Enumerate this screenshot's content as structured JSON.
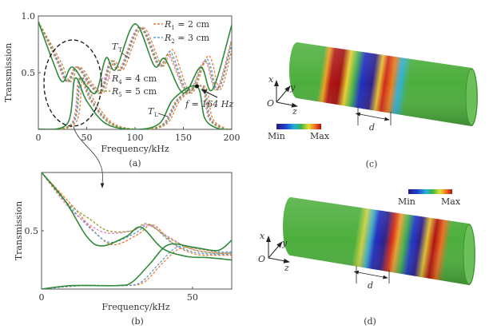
{
  "chart_data": [
    {
      "panel": "(a)",
      "type": "line",
      "xlabel": "Frequency/kHz",
      "ylabel": "Transmission",
      "xlim": [
        0,
        200
      ],
      "ylim": [
        0,
        1.0
      ],
      "xticks": [
        "0",
        "50",
        "100",
        "150",
        "200"
      ],
      "yticks": [
        "0.5",
        "1.0"
      ],
      "grid": false,
      "legend_placement": "top-right and center",
      "annotations": {
        "tt": "T",
        "tt_sub": "T",
        "tl": "T",
        "tl_sub": "L",
        "f": "f = 164 Hz"
      },
      "legend": [
        {
          "sym": "R",
          "sub": "1",
          "text": " = 2 cm",
          "color": "#f07a30"
        },
        {
          "sym": "R",
          "sub": "2",
          "text": " = 3 cm",
          "color": "#5b9bd5"
        },
        {
          "sym": "R",
          "sub": "4",
          "text": " = 4 cm",
          "color": "#e57ec8"
        },
        {
          "sym": "R",
          "sub": "5",
          "text": " = 5 cm",
          "color": "#9c9a2a"
        }
      ],
      "series": [
        {
          "curve": "T_T",
          "group": "R1",
          "color": "#f07a30",
          "dashed": true,
          "points": [
            [
              0,
              0.95
            ],
            [
              23,
              0.6
            ],
            [
              33,
              0.42
            ],
            [
              43,
              0.55
            ],
            [
              58,
              0.38
            ],
            [
              68,
              0.33
            ],
            [
              78,
              0.6
            ],
            [
              88,
              0.53
            ],
            [
              108,
              0.9
            ],
            [
              128,
              0.56
            ],
            [
              139,
              0.7
            ],
            [
              158,
              0.32
            ],
            [
              176,
              0.65
            ],
            [
              188,
              0.35
            ],
            [
              200,
              0.7
            ]
          ]
        },
        {
          "curve": "T_L",
          "group": "R1",
          "color": "#f07a30",
          "dashed": true,
          "points": [
            [
              0,
              0
            ],
            [
              38,
              0.05
            ],
            [
              46,
              0.45
            ],
            [
              58,
              0.25
            ],
            [
              78,
              0.05
            ],
            [
              108,
              0
            ],
            [
              133,
              0.05
            ],
            [
              148,
              0.27
            ],
            [
              172,
              0.38
            ],
            [
              180,
              0.1
            ],
            [
              193,
              0.01
            ],
            [
              200,
              0
            ]
          ]
        },
        {
          "curve": "T_T",
          "group": "R2",
          "color": "#5b9bd5",
          "dashed": true,
          "points": [
            [
              0,
              0.95
            ],
            [
              21,
              0.6
            ],
            [
              31,
              0.42
            ],
            [
              41,
              0.55
            ],
            [
              56,
              0.38
            ],
            [
              66,
              0.33
            ],
            [
              76,
              0.6
            ],
            [
              86,
              0.53
            ],
            [
              106,
              0.9
            ],
            [
              126,
              0.56
            ],
            [
              137,
              0.68
            ],
            [
              156,
              0.32
            ],
            [
              174,
              0.62
            ],
            [
              186,
              0.35
            ],
            [
              200,
              0.75
            ]
          ]
        },
        {
          "curve": "T_L",
          "group": "R2",
          "color": "#5b9bd5",
          "dashed": true,
          "points": [
            [
              0,
              0
            ],
            [
              36,
              0.05
            ],
            [
              44,
              0.45
            ],
            [
              56,
              0.25
            ],
            [
              76,
              0.05
            ],
            [
              106,
              0
            ],
            [
              131,
              0.05
            ],
            [
              146,
              0.27
            ],
            [
              170,
              0.38
            ],
            [
              178,
              0.1
            ],
            [
              191,
              0.01
            ],
            [
              200,
              0
            ]
          ]
        },
        {
          "curve": "T_T",
          "group": "R4",
          "color": "#e57ec8",
          "dashed": true,
          "points": [
            [
              0,
              0.95
            ],
            [
              19,
              0.6
            ],
            [
              29,
              0.42
            ],
            [
              39,
              0.55
            ],
            [
              54,
              0.38
            ],
            [
              64,
              0.33
            ],
            [
              74,
              0.6
            ],
            [
              84,
              0.53
            ],
            [
              104,
              0.9
            ],
            [
              124,
              0.56
            ],
            [
              135,
              0.65
            ],
            [
              154,
              0.32
            ],
            [
              172,
              0.6
            ],
            [
              184,
              0.35
            ],
            [
              200,
              0.8
            ]
          ]
        },
        {
          "curve": "T_L",
          "group": "R4",
          "color": "#e57ec8",
          "dashed": true,
          "points": [
            [
              0,
              0
            ],
            [
              34,
              0.05
            ],
            [
              42,
              0.45
            ],
            [
              54,
              0.25
            ],
            [
              74,
              0.05
            ],
            [
              104,
              0
            ],
            [
              129,
              0.05
            ],
            [
              144,
              0.27
            ],
            [
              168,
              0.38
            ],
            [
              176,
              0.1
            ],
            [
              189,
              0.01
            ],
            [
              200,
              0
            ]
          ]
        },
        {
          "curve": "T_T",
          "group": "R5",
          "color": "#9c9a2a",
          "dashed": true,
          "points": [
            [
              0,
              0.95
            ],
            [
              20,
              0.6
            ],
            [
              30,
              0.42
            ],
            [
              40,
              0.55
            ],
            [
              55,
              0.38
            ],
            [
              65,
              0.33
            ],
            [
              75,
              0.6
            ],
            [
              85,
              0.53
            ],
            [
              105,
              0.9
            ],
            [
              125,
              0.56
            ],
            [
              136,
              0.66
            ],
            [
              155,
              0.32
            ],
            [
              173,
              0.6
            ],
            [
              185,
              0.35
            ],
            [
              200,
              0.78
            ]
          ]
        },
        {
          "curve": "T_L",
          "group": "R5",
          "color": "#9c9a2a",
          "dashed": true,
          "points": [
            [
              0,
              0
            ],
            [
              35,
              0.05
            ],
            [
              43,
              0.45
            ],
            [
              55,
              0.25
            ],
            [
              75,
              0.05
            ],
            [
              105,
              0
            ],
            [
              130,
              0.05
            ],
            [
              145,
              0.27
            ],
            [
              169,
              0.38
            ],
            [
              177,
              0.1
            ],
            [
              190,
              0.01
            ],
            [
              200,
              0
            ]
          ]
        },
        {
          "curve": "T_T",
          "group": "reference",
          "color": "#2e8b3a",
          "dashed": false,
          "points": [
            [
              0,
              0.95
            ],
            [
              15,
              0.6
            ],
            [
              25,
              0.42
            ],
            [
              35,
              0.55
            ],
            [
              50,
              0.38
            ],
            [
              60,
              0.33
            ],
            [
              70,
              0.63
            ],
            [
              80,
              0.53
            ],
            [
              100,
              0.93
            ],
            [
              120,
              0.56
            ],
            [
              131,
              0.62
            ],
            [
              150,
              0.32
            ],
            [
              168,
              0.55
            ],
            [
              180,
              0.35
            ],
            [
              200,
              0.92
            ]
          ]
        },
        {
          "curve": "T_L",
          "group": "reference",
          "color": "#2e8b3a",
          "dashed": false,
          "points": [
            [
              0,
              0
            ],
            [
              30,
              0.05
            ],
            [
              38,
              0.45
            ],
            [
              50,
              0.25
            ],
            [
              70,
              0.05
            ],
            [
              100,
              0
            ],
            [
              125,
              0.05
            ],
            [
              140,
              0.27
            ],
            [
              164,
              0.38
            ],
            [
              172,
              0.1
            ],
            [
              185,
              0.01
            ],
            [
              200,
              0
            ]
          ]
        }
      ],
      "marker": {
        "x": 164,
        "y": 0.38
      }
    },
    {
      "panel": "(b)",
      "type": "line",
      "xlabel": "Frequency/kHz",
      "ylabel": "Transmission",
      "xlim": [
        0,
        63
      ],
      "ylim": [
        0,
        1.0
      ],
      "xticks": [
        "0",
        "50"
      ],
      "yticks": [
        "0.5"
      ],
      "grid": false,
      "series": [
        {
          "curve": "T_T",
          "group": "R1",
          "color": "#f07a30",
          "dashed": true,
          "points": [
            [
              0,
              1
            ],
            [
              10,
              0.72
            ],
            [
              18,
              0.48
            ],
            [
              24,
              0.38
            ],
            [
              32,
              0.47
            ],
            [
              37,
              0.55
            ],
            [
              44,
              0.38
            ],
            [
              51,
              0.3
            ],
            [
              57,
              0.29
            ],
            [
              63,
              0.29
            ]
          ]
        },
        {
          "curve": "T_L",
          "group": "R1",
          "color": "#f07a30",
          "dashed": true,
          "points": [
            [
              0,
              0
            ],
            [
              14,
              0.03
            ],
            [
              28,
              0.03
            ],
            [
              34,
              0.06
            ],
            [
              40,
              0.22
            ],
            [
              46,
              0.35
            ],
            [
              53,
              0.34
            ],
            [
              59,
              0.31
            ],
            [
              63,
              0.3
            ]
          ]
        },
        {
          "curve": "T_T",
          "group": "R2",
          "color": "#5b9bd5",
          "dashed": true,
          "points": [
            [
              0,
              1
            ],
            [
              9,
              0.72
            ],
            [
              17,
              0.5
            ],
            [
              23,
              0.4
            ],
            [
              31,
              0.48
            ],
            [
              36,
              0.55
            ],
            [
              43,
              0.4
            ],
            [
              50,
              0.32
            ],
            [
              57,
              0.3
            ],
            [
              63,
              0.3
            ]
          ]
        },
        {
          "curve": "T_L",
          "group": "R2",
          "color": "#5b9bd5",
          "dashed": true,
          "points": [
            [
              0,
              0
            ],
            [
              13,
              0.03
            ],
            [
              27,
              0.03
            ],
            [
              33,
              0.06
            ],
            [
              39,
              0.22
            ],
            [
              45,
              0.36
            ],
            [
              52,
              0.35
            ],
            [
              59,
              0.32
            ],
            [
              63,
              0.32
            ]
          ]
        },
        {
          "curve": "T_T",
          "group": "R4",
          "color": "#e57ec8",
          "dashed": true,
          "points": [
            [
              0,
              1
            ],
            [
              9,
              0.7
            ],
            [
              16,
              0.55
            ],
            [
              22,
              0.48
            ],
            [
              30,
              0.5
            ],
            [
              35,
              0.55
            ],
            [
              42,
              0.45
            ],
            [
              49,
              0.35
            ],
            [
              57,
              0.31
            ],
            [
              63,
              0.31
            ]
          ]
        },
        {
          "curve": "T_T",
          "group": "R5",
          "color": "#9c9a2a",
          "dashed": true,
          "points": [
            [
              0,
              1
            ],
            [
              8,
              0.75
            ],
            [
              16,
              0.6
            ],
            [
              22,
              0.5
            ],
            [
              30,
              0.5
            ],
            [
              35,
              0.56
            ],
            [
              42,
              0.44
            ],
            [
              50,
              0.34
            ],
            [
              57,
              0.31
            ],
            [
              63,
              0.31
            ]
          ]
        },
        {
          "curve": "T_T",
          "group": "reference",
          "color": "#2e8b3a",
          "dashed": false,
          "points": [
            [
              0,
              1
            ],
            [
              8,
              0.75
            ],
            [
              15,
              0.45
            ],
            [
              20,
              0.37
            ],
            [
              28,
              0.45
            ],
            [
              33,
              0.53
            ],
            [
              40,
              0.35
            ],
            [
              48,
              0.28
            ],
            [
              55,
              0.27
            ],
            [
              63,
              0.25
            ]
          ]
        },
        {
          "curve": "T_L",
          "group": "reference",
          "color": "#2e8b3a",
          "dashed": false,
          "points": [
            [
              0,
              0
            ],
            [
              10,
              0.03
            ],
            [
              25,
              0.03
            ],
            [
              30,
              0.06
            ],
            [
              36,
              0.22
            ],
            [
              42,
              0.38
            ],
            [
              50,
              0.36
            ],
            [
              57,
              0.33
            ],
            [
              60,
              0.35
            ],
            [
              63,
              0.42
            ]
          ]
        }
      ]
    }
  ],
  "panels": {
    "a": "(a)",
    "b": "(b)",
    "c": "(c)",
    "d": "(d)"
  },
  "field_maps": {
    "colorbar_min": "Min",
    "colorbar_max": "Max",
    "colorbar_colors": [
      "#2a1a7a",
      "#1f3fd0",
      "#22b0d8",
      "#3bb34a",
      "#e8e030",
      "#f07020",
      "#b01010"
    ],
    "axis_x": "x",
    "axis_y": "y",
    "axis_z": "z",
    "origin": "O",
    "dimension": "d",
    "tube_color": "#4cae3c"
  }
}
